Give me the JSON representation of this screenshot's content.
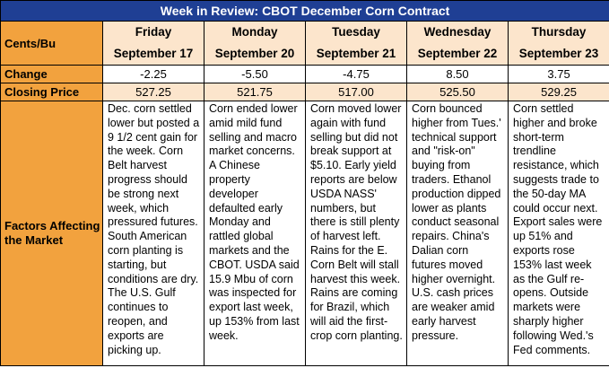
{
  "title": "Week in Review: CBOT December Corn Contract",
  "row_labels": {
    "units": "Cents/Bu",
    "change": "Change",
    "closing": "Closing Price",
    "factors": "Factors Affecting the Market"
  },
  "days": [
    {
      "day": "Friday",
      "date": "September 17",
      "change": "-2.25",
      "close": "527.25",
      "factors": "Dec. corn settled lower but posted a 9 1/2 cent gain for the week. Corn Belt harvest progress should be strong next week, which pressured futures. South American corn planting is starting, but conditions are dry. The U.S. Gulf continues to reopen, and exports are picking up."
    },
    {
      "day": "Monday",
      "date": "September 20",
      "change": "-5.50",
      "close": "521.75",
      "factors": "Corn ended lower amid mild fund selling and macro market concerns. A Chinese property developer defaulted early Monday and rattled global markets and the CBOT. USDA said 15.9 Mbu of corn was inspected for export last week, up 153% from last week."
    },
    {
      "day": "Tuesday",
      "date": "September 21",
      "change": "-4.75",
      "close": "517.00",
      "factors": "Corn moved lower again with fund selling but did not break support at $5.10. Early yield reports are below USDA NASS' numbers, but there is still plenty of harvest left. Rains for the E. Corn Belt will stall harvest this week. Rains are coming for Brazil, which will aid the first-crop corn planting."
    },
    {
      "day": "Wednesday",
      "date": "September 22",
      "change": "8.50",
      "close": "525.50",
      "factors": "Corn bounced higher from Tues.' technical support and \"risk-on\" buying from traders. Ethanol production dipped lower as plants conduct seasonal repairs. China's Dalian corn futures moved higher overnight. U.S. cash prices are weaker amid early harvest pressure."
    },
    {
      "day": "Thursday",
      "date": "September 23",
      "change": "3.75",
      "close": "529.25",
      "factors": "Corn settled higher and broke short-term trendline resistance, which suggests trade to the 50-day MA could occur next. Export sales were up 51% and exports rose 153% last week as the Gulf re-opens. Outside markets were sharply higher following Wed.'s Fed comments."
    }
  ],
  "colors": {
    "title_bg": "#1f3f94",
    "label_bg": "#f2a23e",
    "header_bg": "#fce5cc"
  }
}
